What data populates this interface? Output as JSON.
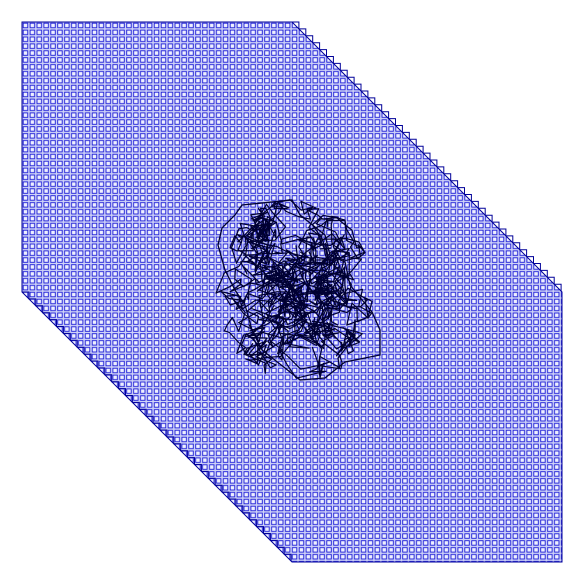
{
  "figure": {
    "background_color": "#ffffff",
    "grid_fill_color": "#cfd3f7",
    "grid_cell_stroke_color": "#1a1ad6",
    "grid_outline_color": "#000099",
    "path_color": "#000033",
    "shape": "octagonal-grid-with-diagonal-cut-corners",
    "overlay": "random-walk-path-cluster-near-center",
    "axes_visible": false
  }
}
